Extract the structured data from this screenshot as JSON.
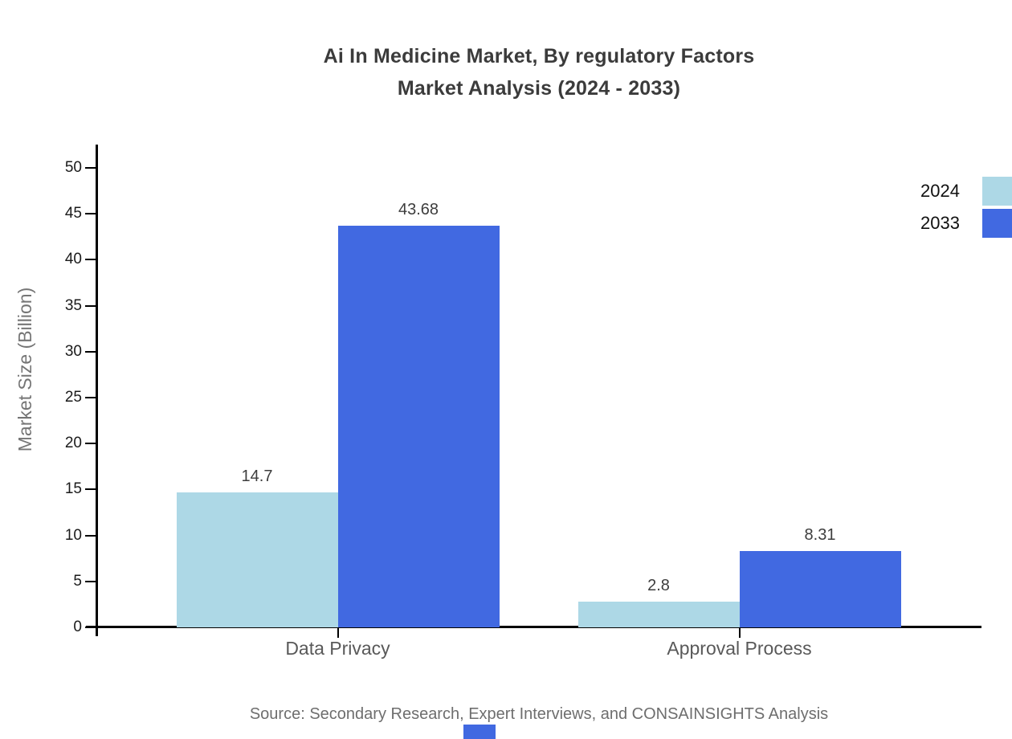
{
  "title": {
    "line1": "Ai In Medicine Market, By regulatory Factors",
    "line2": "Market Analysis (2024 - 2033)"
  },
  "source": "Source: Secondary Research, Expert Interviews, and CONSAINSIGHTS Analysis",
  "chart_data": {
    "type": "bar",
    "title": "Ai In Medicine Market, By regulatory Factors Market Analysis (2024 - 2033)",
    "categories": [
      "Data Privacy",
      "Approval Process"
    ],
    "series": [
      {
        "name": "2024",
        "color": "#add8e6",
        "values": [
          14.7,
          2.8
        ]
      },
      {
        "name": "2033",
        "color": "#4169e1",
        "values": [
          43.68,
          8.31
        ]
      }
    ],
    "xlabel": "",
    "ylabel": "Market Size (Billion)",
    "ylim": [
      0,
      50
    ],
    "ytick_step": 5,
    "grid": false,
    "legend_position": "top-right",
    "value_labels": true
  },
  "colors": {
    "axis": "#000000",
    "tick_label": "#1a1a1a",
    "category_label": "#595959",
    "value_label": "#3d3d3d",
    "title_text": "#3b3b3b",
    "muted_text": "#6e6e6e",
    "accent_blue": "#4169e1"
  }
}
